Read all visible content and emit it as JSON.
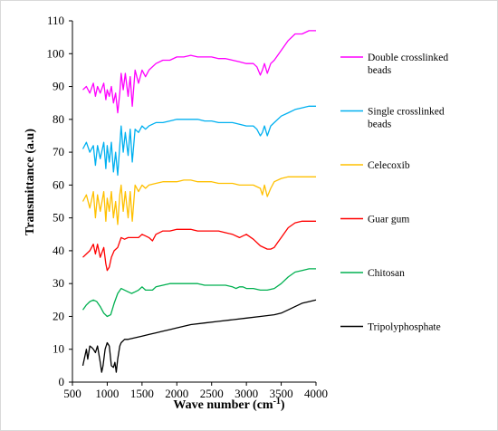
{
  "chart_data": {
    "type": "line",
    "title": "",
    "xlabel": "Wave number (cm",
    "xlabel_superscript": "-1",
    "xlabel_suffix": ")",
    "ylabel": "Transmittance (a.u)",
    "xlim": [
      500,
      4000
    ],
    "ylim": [
      0,
      110
    ],
    "xticks": [
      500,
      1000,
      1500,
      2000,
      2500,
      3000,
      3500,
      4000
    ],
    "yticks": [
      0,
      10,
      20,
      30,
      40,
      50,
      60,
      70,
      80,
      90,
      100,
      110
    ],
    "grid": false,
    "legend_position": "right",
    "series": [
      {
        "name_lines": [
          "Double crosslinked",
          "beads"
        ],
        "color": "#ff00ff",
        "x": [
          650,
          700,
          750,
          800,
          830,
          860,
          900,
          950,
          980,
          1000,
          1030,
          1060,
          1090,
          1120,
          1150,
          1180,
          1200,
          1230,
          1260,
          1300,
          1330,
          1360,
          1400,
          1450,
          1500,
          1550,
          1600,
          1700,
          1800,
          1900,
          2000,
          2100,
          2200,
          2300,
          2400,
          2500,
          2600,
          2700,
          2800,
          2900,
          3000,
          3100,
          3150,
          3200,
          3230,
          3260,
          3300,
          3350,
          3400,
          3500,
          3600,
          3700,
          3800,
          3900,
          4000
        ],
        "values": [
          89,
          90,
          88,
          91,
          87,
          90,
          88,
          91,
          86,
          89,
          87,
          90,
          85,
          88,
          82,
          88,
          94,
          89,
          94,
          87,
          93,
          84,
          95,
          91,
          95,
          93,
          95,
          97,
          98,
          98,
          99,
          99,
          99.5,
          99,
          99,
          99,
          98.5,
          98.5,
          98,
          97.5,
          97,
          97,
          96,
          93.5,
          95,
          97,
          94,
          97,
          98,
          101,
          104,
          106,
          106,
          107,
          107
        ]
      },
      {
        "name_lines": [
          "Single crosslinked",
          "beads"
        ],
        "color": "#00b0f0",
        "x": [
          650,
          700,
          750,
          800,
          830,
          860,
          900,
          950,
          980,
          1000,
          1030,
          1060,
          1090,
          1120,
          1150,
          1180,
          1200,
          1230,
          1260,
          1300,
          1330,
          1360,
          1400,
          1450,
          1500,
          1550,
          1600,
          1700,
          1800,
          1900,
          2000,
          2100,
          2200,
          2300,
          2400,
          2500,
          2600,
          2700,
          2800,
          2900,
          3000,
          3100,
          3150,
          3200,
          3230,
          3260,
          3300,
          3350,
          3400,
          3500,
          3600,
          3700,
          3800,
          3900,
          4000
        ],
        "values": [
          71,
          73,
          70,
          72,
          66,
          72,
          68,
          73,
          65,
          72,
          67,
          73,
          64,
          70,
          63,
          72,
          78,
          70,
          76,
          69,
          77,
          67,
          77,
          76,
          78,
          77,
          78,
          79,
          79,
          79.5,
          80,
          80,
          80,
          80,
          79.5,
          79.5,
          79,
          79,
          79,
          78.5,
          78,
          78,
          77,
          75,
          76,
          78,
          75,
          78,
          79,
          81,
          82,
          83,
          83.5,
          84,
          84
        ]
      },
      {
        "name_lines": [
          "Celecoxib"
        ],
        "color": "#ffc000",
        "x": [
          650,
          700,
          750,
          800,
          830,
          860,
          900,
          950,
          980,
          1000,
          1030,
          1060,
          1090,
          1120,
          1150,
          1180,
          1200,
          1230,
          1260,
          1300,
          1330,
          1360,
          1400,
          1450,
          1500,
          1550,
          1600,
          1700,
          1800,
          1900,
          2000,
          2100,
          2200,
          2300,
          2400,
          2500,
          2600,
          2700,
          2800,
          2900,
          3000,
          3100,
          3200,
          3230,
          3260,
          3300,
          3350,
          3400,
          3500,
          3600,
          3700,
          3800,
          3900,
          4000
        ],
        "values": [
          55,
          57,
          53,
          58,
          50,
          57,
          52,
          58,
          49,
          56,
          52,
          58,
          50,
          55,
          48,
          57,
          60,
          52,
          58,
          50,
          58,
          49,
          60,
          58,
          60,
          59,
          60,
          60.5,
          61,
          61,
          61,
          61.5,
          61.5,
          61,
          61,
          61,
          60.5,
          60.5,
          60.5,
          60,
          60,
          60,
          59,
          57,
          60,
          56.5,
          59,
          61,
          62,
          62.5,
          62.5,
          62.5,
          62.5,
          62.5
        ]
      },
      {
        "name_lines": [
          "Guar gum"
        ],
        "color": "#ff0000",
        "x": [
          650,
          700,
          750,
          800,
          830,
          860,
          900,
          950,
          980,
          1000,
          1030,
          1060,
          1100,
          1150,
          1200,
          1250,
          1300,
          1350,
          1400,
          1450,
          1500,
          1550,
          1600,
          1650,
          1700,
          1800,
          1900,
          2000,
          2100,
          2200,
          2300,
          2400,
          2500,
          2600,
          2700,
          2800,
          2900,
          2950,
          3000,
          3100,
          3200,
          3300,
          3350,
          3400,
          3450,
          3500,
          3600,
          3700,
          3800,
          3900,
          4000
        ],
        "values": [
          38,
          39,
          40,
          42,
          39,
          42,
          38,
          41,
          36,
          34,
          35,
          38,
          40,
          41,
          44,
          43.5,
          44,
          44,
          44,
          44,
          45,
          44.5,
          44,
          43,
          45,
          46,
          46,
          46.5,
          46.5,
          46.5,
          46,
          46,
          46,
          46,
          45.5,
          45,
          44,
          44.5,
          45,
          43.5,
          41.5,
          40.5,
          40.5,
          41,
          42.5,
          44,
          47,
          48.5,
          49,
          49,
          49
        ]
      },
      {
        "name_lines": [
          "Chitosan"
        ],
        "color": "#00b050",
        "x": [
          650,
          700,
          750,
          800,
          850,
          900,
          950,
          1000,
          1050,
          1100,
          1150,
          1200,
          1250,
          1300,
          1350,
          1400,
          1450,
          1500,
          1550,
          1600,
          1650,
          1700,
          1800,
          1900,
          2000,
          2100,
          2200,
          2300,
          2400,
          2500,
          2600,
          2700,
          2800,
          2850,
          2900,
          2950,
          3000,
          3100,
          3200,
          3300,
          3400,
          3500,
          3600,
          3700,
          3800,
          3900,
          4000
        ],
        "values": [
          22,
          23.5,
          24.5,
          25,
          24.5,
          23,
          21,
          20,
          20.5,
          24,
          27,
          28.5,
          28,
          27.5,
          27,
          27.5,
          28,
          29,
          28,
          28,
          28,
          29,
          29.5,
          30,
          30,
          30,
          30,
          30,
          29.5,
          29.5,
          29.5,
          29.5,
          29,
          28.5,
          29,
          29,
          28.5,
          28.5,
          28,
          28,
          28.5,
          30,
          32,
          33.5,
          34,
          34.5,
          34.5
        ]
      },
      {
        "name_lines": [
          "Tripolyphosphate"
        ],
        "color": "#000000",
        "x": [
          650,
          700,
          720,
          750,
          780,
          800,
          830,
          860,
          900,
          920,
          940,
          970,
          1000,
          1030,
          1060,
          1090,
          1110,
          1130,
          1150,
          1180,
          1200,
          1250,
          1300,
          1400,
          1500,
          1600,
          1700,
          1800,
          1900,
          2000,
          2200,
          2400,
          2600,
          2800,
          3000,
          3200,
          3400,
          3500,
          3600,
          3700,
          3800,
          3900,
          4000
        ],
        "values": [
          5,
          10,
          7,
          11,
          10.5,
          10,
          9,
          11,
          6,
          3,
          5,
          10,
          12,
          11,
          5,
          4.5,
          6,
          3,
          7,
          11,
          12,
          13,
          13,
          13.5,
          14,
          14.5,
          15,
          15.5,
          16,
          16.5,
          17.5,
          18,
          18.5,
          19,
          19.5,
          20,
          20.5,
          21,
          22,
          23,
          24,
          24.5,
          25
        ]
      }
    ]
  }
}
